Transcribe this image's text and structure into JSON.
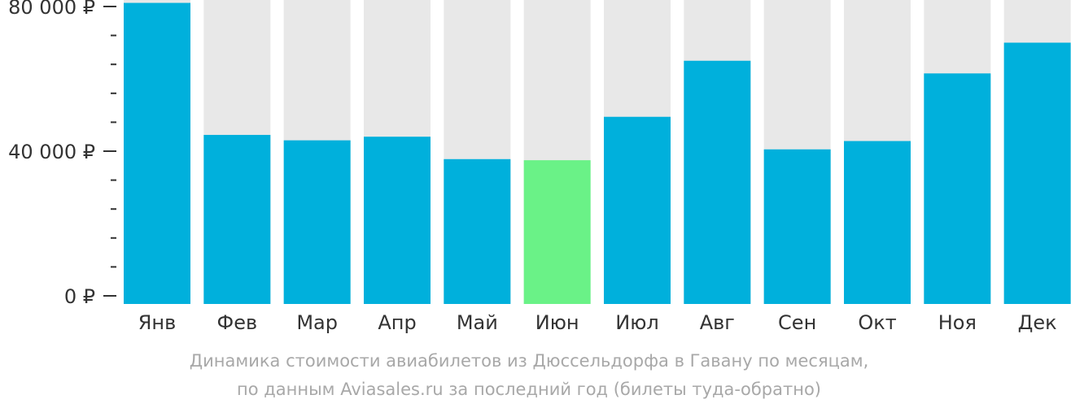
{
  "chart_data": {
    "type": "bar",
    "categories": [
      "Янв",
      "Фев",
      "Мар",
      "Апр",
      "Май",
      "Июн",
      "Июл",
      "Авг",
      "Сен",
      "Окт",
      "Ноя",
      "Дек"
    ],
    "values": [
      81000,
      44500,
      43000,
      44000,
      37800,
      37500,
      49500,
      65000,
      40500,
      42800,
      61500,
      70000
    ],
    "ylim": [
      0,
      82000
    ],
    "y_ticks": [
      {
        "value": 0,
        "label": "0 ₽"
      },
      {
        "value": 40000,
        "label": "40 000 ₽"
      },
      {
        "value": 80000,
        "label": "80 000 ₽"
      }
    ],
    "y_minor_step": 8000,
    "highlight_index": 5,
    "colors": {
      "bar": "#00b0dc",
      "highlight": "#6af287",
      "background_bar": "#e8e8e8",
      "axis_text": "#333333",
      "caption_text": "#a8a8a8"
    },
    "caption_lines": [
      "Динамика стоимости авиабилетов из Дюссельдорфа в Гавану по месяцам,",
      "по данным Aviasales.ru за последний год (билеты туда-обратно)"
    ]
  }
}
